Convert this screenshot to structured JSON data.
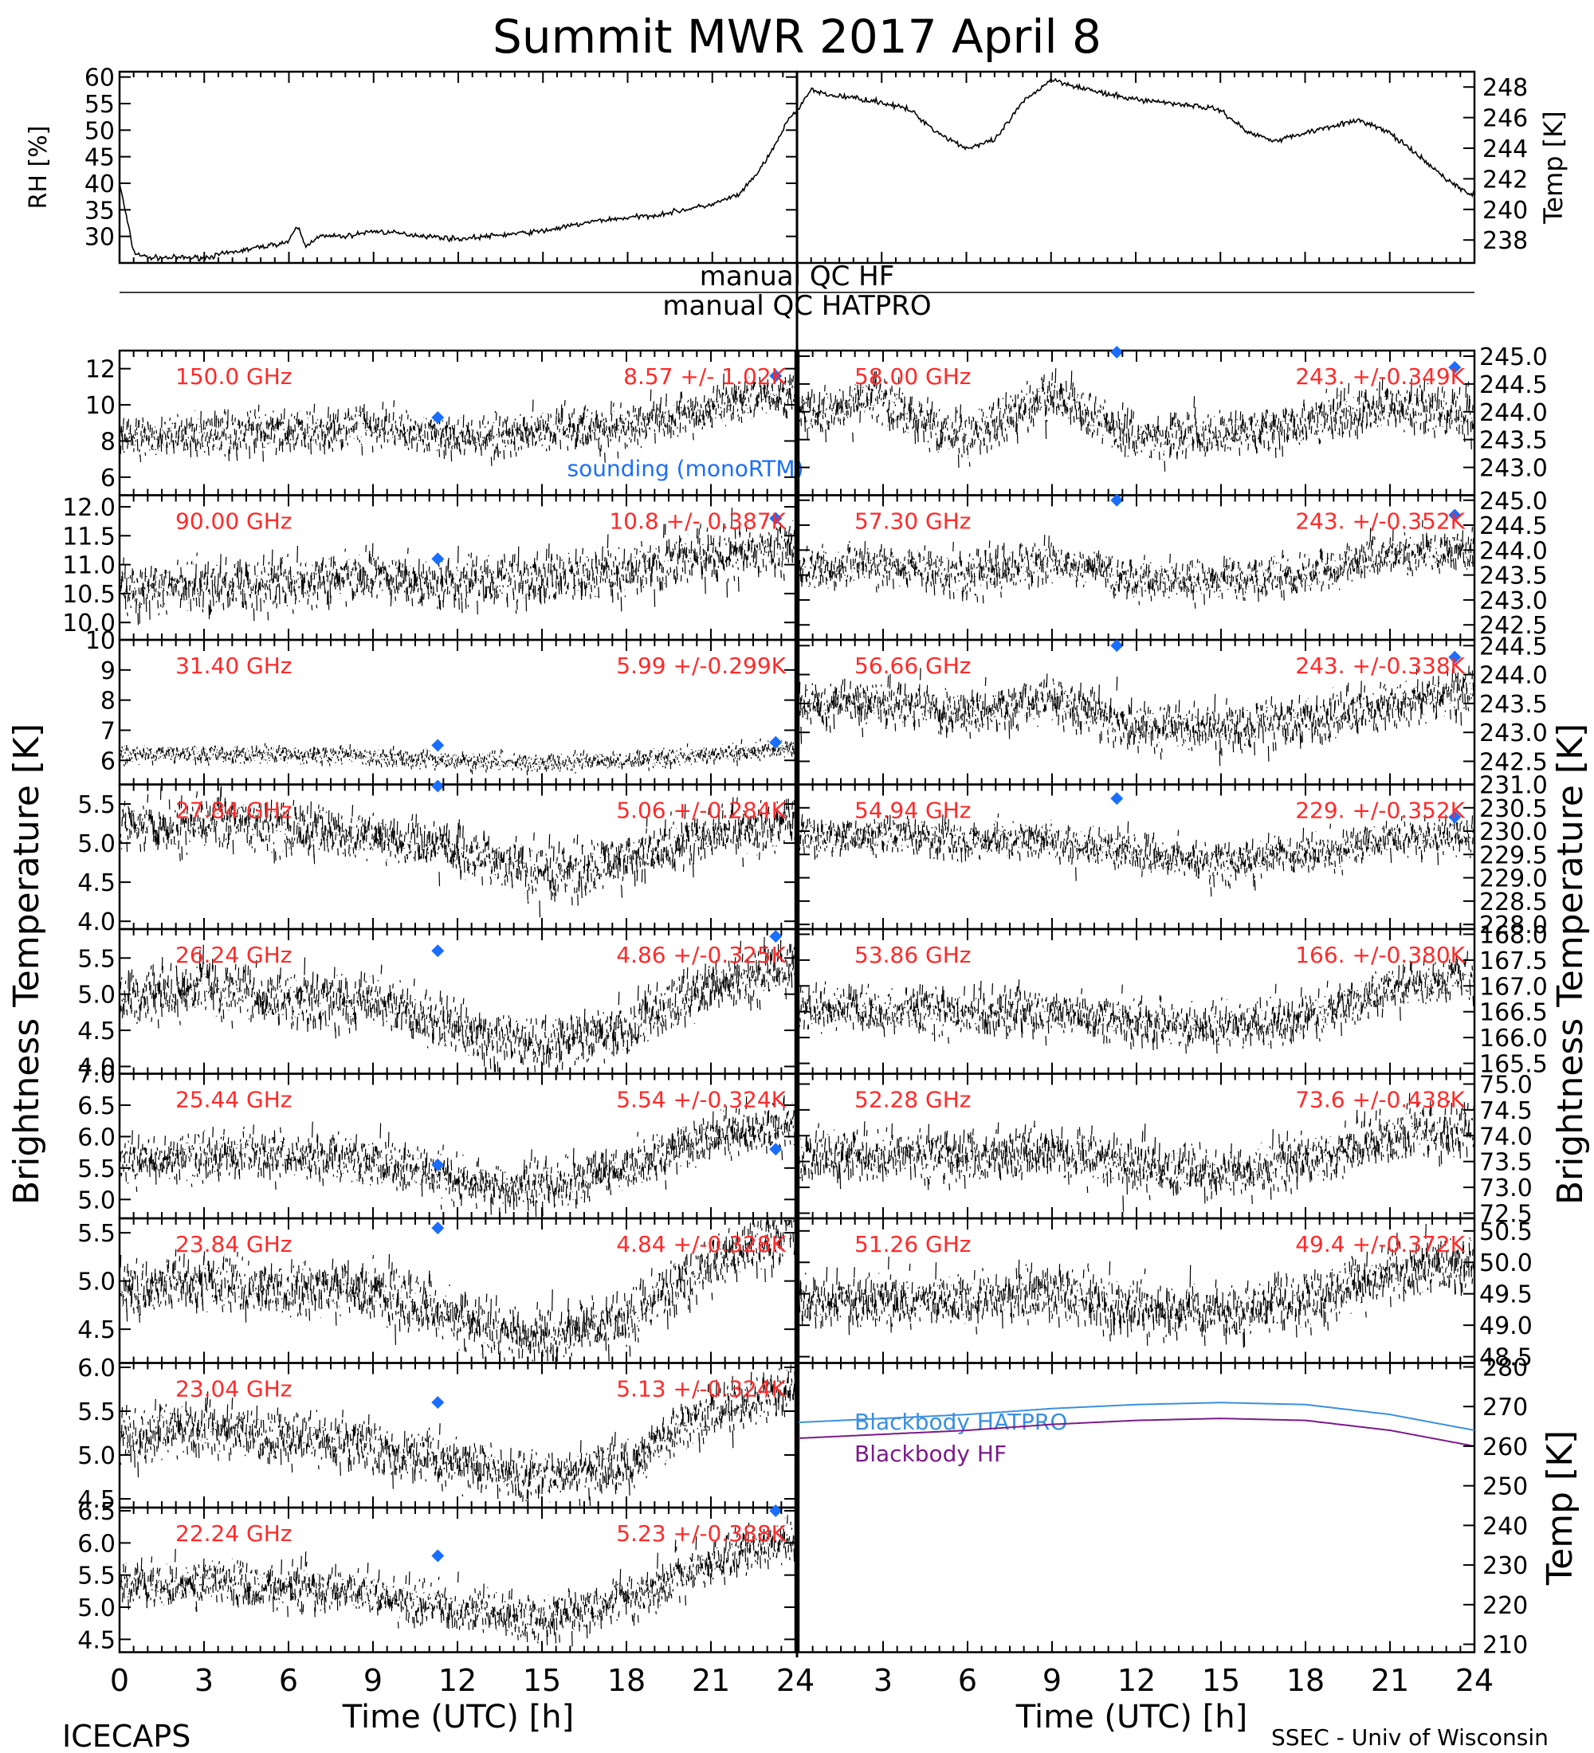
{
  "title": "Summit MWR 2017 April  8",
  "footer": {
    "left": "ICECAPS",
    "right": "SSEC - Univ of Wisconsin"
  },
  "qc_labels": {
    "hf": "manual  QC HF",
    "hatpro": "manual  QC HATPRO"
  },
  "shared_axis_labels": {
    "left": "Brightness Temperature [K]",
    "right": "Brightness Temperature [K]",
    "x": "Time (UTC) [h]",
    "x_ticks": [
      "0",
      "3",
      "6",
      "9",
      "12",
      "15",
      "18",
      "21",
      "24"
    ]
  },
  "colors": {
    "data": "#000000",
    "channel_label": "#ff2a2a",
    "sounding": "#1a6eff",
    "blackbody_hatpro": "#3a8fe0",
    "blackbody_hf": "#7a1a8a"
  },
  "chart_data": [
    {
      "id": "rh",
      "type": "line",
      "ylabel": "RH [%]",
      "ylim": [
        25,
        61
      ],
      "yticks": [
        30,
        35,
        40,
        45,
        50,
        55,
        60
      ],
      "xlim": [
        0,
        24
      ],
      "x": [
        0,
        0.5,
        1,
        2,
        3,
        4,
        5,
        6,
        6.3,
        6.6,
        7,
        8,
        9,
        10,
        11,
        12,
        13,
        14,
        15,
        16,
        17,
        18,
        19,
        20,
        21,
        22,
        22.6,
        23,
        23.5,
        23.8
      ],
      "values": [
        40,
        27,
        26,
        26,
        26,
        27,
        28,
        29,
        32,
        28,
        30,
        30,
        31,
        30.5,
        30,
        29.5,
        30,
        30.5,
        31,
        32,
        33,
        33.5,
        34,
        35,
        36,
        38,
        42,
        45,
        50,
        53
      ]
    },
    {
      "id": "temp",
      "type": "line",
      "ylabel": "Temp [K]",
      "ylim": [
        236.5,
        249
      ],
      "yticks": [
        238,
        240,
        242,
        244,
        246,
        248
      ],
      "xlim": [
        0,
        24
      ],
      "x": [
        0,
        0.5,
        1,
        2,
        3,
        4,
        5,
        6,
        7,
        8,
        9,
        10,
        11,
        12,
        13,
        14,
        15,
        16,
        17,
        18,
        19,
        20,
        21,
        22,
        23,
        23.8
      ],
      "values": [
        246.5,
        247.8,
        247.5,
        247.3,
        247,
        246.5,
        245,
        244,
        244.5,
        247,
        248.5,
        248,
        247.5,
        247.2,
        247,
        246.8,
        246.5,
        245,
        244.5,
        245,
        245.5,
        245.8,
        245,
        243.5,
        242,
        241
      ]
    },
    {
      "id": "ch150",
      "type": "scatter",
      "panel": "left-1",
      "label": "150.0 GHz",
      "stats": "8.57 +/- 1.02K",
      "ylim": [
        5,
        13
      ],
      "yticks": [
        "6",
        "8",
        "10",
        "12"
      ],
      "noise": 1.0,
      "x": [
        0,
        3,
        6,
        9,
        12,
        15,
        18,
        21,
        24
      ],
      "values": [
        8.2,
        8.3,
        8.6,
        8.8,
        8.2,
        8.5,
        8.8,
        9.8,
        10.8
      ],
      "sounding": [
        {
          "x": 11.3,
          "y": 9.3
        },
        {
          "x": 23.3,
          "y": 11.6
        }
      ],
      "sounding_label": "sounding (monoRTM)"
    },
    {
      "id": "ch58",
      "type": "scatter",
      "panel": "right-1",
      "label": "58.00 GHz",
      "stats": "243. +/-0.349K",
      "ylim": [
        242.5,
        245.1
      ],
      "yticks": [
        "243.0",
        "243.5",
        "244.0",
        "244.5",
        "245.0"
      ],
      "noise": 0.35,
      "x": [
        0,
        3,
        6,
        9,
        12,
        15,
        18,
        21,
        24
      ],
      "values": [
        244.0,
        244.2,
        243.5,
        244.3,
        243.5,
        243.6,
        243.8,
        244.1,
        244.0
      ],
      "sounding": [
        {
          "x": 11.3,
          "y": 245.1
        },
        {
          "x": 23.3,
          "y": 244.8
        }
      ]
    },
    {
      "id": "ch90",
      "type": "scatter",
      "panel": "left-2",
      "label": "90.00 GHz",
      "stats": "10.8 +/- 0.387K",
      "ylim": [
        9.7,
        12.2
      ],
      "yticks": [
        "10.0",
        "10.5",
        "11.0",
        "11.5",
        "12.0"
      ],
      "noise": 0.38,
      "x": [
        0,
        3,
        6,
        9,
        12,
        15,
        18,
        21,
        24
      ],
      "values": [
        10.6,
        10.6,
        10.7,
        10.8,
        10.7,
        10.8,
        10.9,
        11.2,
        11.3
      ],
      "sounding": [
        {
          "x": 11.3,
          "y": 11.1
        },
        {
          "x": 23.3,
          "y": 11.8
        }
      ]
    },
    {
      "id": "ch5730",
      "type": "scatter",
      "panel": "right-2",
      "label": "57.30 GHz",
      "stats": "243. +/-0.352K",
      "ylim": [
        242.2,
        245.1
      ],
      "yticks": [
        "242.5",
        "243.0",
        "243.5",
        "244.0",
        "244.5",
        "245.0"
      ],
      "noise": 0.35,
      "x": [
        0,
        3,
        6,
        9,
        12,
        15,
        18,
        21,
        24
      ],
      "values": [
        243.6,
        243.7,
        243.5,
        243.8,
        243.4,
        243.4,
        243.5,
        243.9,
        244.0
      ],
      "sounding": [
        {
          "x": 11.3,
          "y": 245.0
        },
        {
          "x": 23.3,
          "y": 244.7
        }
      ]
    },
    {
      "id": "ch3140",
      "type": "scatter",
      "panel": "left-3",
      "label": "31.40 GHz",
      "stats": "5.99 +/-0.299K",
      "ylim": [
        5.2,
        10
      ],
      "yticks": [
        "6",
        "7",
        "8",
        "9",
        "10"
      ],
      "noise": 0.25,
      "x": [
        0,
        3,
        6,
        9,
        12,
        15,
        18,
        21,
        24
      ],
      "values": [
        6.2,
        6.2,
        6.2,
        6.1,
        6.0,
        5.9,
        6.0,
        6.2,
        6.4
      ],
      "sounding": [
        {
          "x": 11.3,
          "y": 6.5
        },
        {
          "x": 23.3,
          "y": 6.6
        }
      ]
    },
    {
      "id": "ch5666",
      "type": "scatter",
      "panel": "right-3",
      "label": "56.66 GHz",
      "stats": "243. +/-0.338K",
      "ylim": [
        242.1,
        244.6
      ],
      "yticks": [
        "242.5",
        "243.0",
        "243.5",
        "244.0",
        "244.5"
      ],
      "noise": 0.34,
      "x": [
        0,
        3,
        6,
        9,
        12,
        15,
        18,
        21,
        24
      ],
      "values": [
        243.5,
        243.5,
        243.3,
        243.6,
        243.1,
        243.1,
        243.2,
        243.5,
        243.7
      ],
      "sounding": [
        {
          "x": 11.3,
          "y": 244.5
        },
        {
          "x": 23.3,
          "y": 244.3
        }
      ]
    },
    {
      "id": "ch2784",
      "type": "scatter",
      "panel": "left-4",
      "label": "27.84 GHz",
      "stats": "5.06 +/-0.284K",
      "ylim": [
        3.9,
        5.75
      ],
      "yticks": [
        "4.0",
        "4.5",
        "5.0",
        "5.5"
      ],
      "noise": 0.28,
      "x": [
        0,
        3,
        6,
        9,
        12,
        15,
        18,
        21,
        24
      ],
      "values": [
        5.2,
        5.3,
        5.2,
        5.1,
        4.9,
        4.6,
        4.8,
        5.1,
        5.3
      ],
      "sounding": [
        {
          "x": 11.3,
          "y": 5.75
        }
      ]
    },
    {
      "id": "ch5494",
      "type": "scatter",
      "panel": "right-4",
      "label": "54.94 GHz",
      "stats": "229. +/-0.352K",
      "ylim": [
        227.9,
        231
      ],
      "yticks": [
        "228.0",
        "228.5",
        "229.0",
        "229.5",
        "230.0",
        "230.5",
        "231.0"
      ],
      "noise": 0.35,
      "x": [
        0,
        3,
        6,
        9,
        12,
        15,
        18,
        21,
        24
      ],
      "values": [
        229.9,
        229.9,
        229.8,
        229.8,
        229.5,
        229.3,
        229.5,
        229.8,
        229.9
      ],
      "sounding": [
        {
          "x": 11.3,
          "y": 230.7
        },
        {
          "x": 23.3,
          "y": 230.3
        }
      ]
    },
    {
      "id": "ch2624",
      "type": "scatter",
      "panel": "left-5",
      "label": "26.24 GHz",
      "stats": "4.86 +/-0.325K",
      "ylim": [
        3.9,
        5.9
      ],
      "yticks": [
        "4.0",
        "4.5",
        "5.0",
        "5.5"
      ],
      "noise": 0.32,
      "x": [
        0,
        3,
        6,
        9,
        12,
        15,
        18,
        21,
        24
      ],
      "values": [
        4.9,
        5.1,
        4.9,
        4.9,
        4.5,
        4.3,
        4.5,
        5.1,
        5.4
      ],
      "sounding": [
        {
          "x": 11.3,
          "y": 5.6
        },
        {
          "x": 23.3,
          "y": 5.8
        }
      ]
    },
    {
      "id": "ch5386",
      "type": "scatter",
      "panel": "right-5",
      "label": "53.86 GHz",
      "stats": "166. +/-0.380K",
      "ylim": [
        165.3,
        168.1
      ],
      "yticks": [
        "165.5",
        "166.0",
        "166.5",
        "167.0",
        "167.5",
        "168.0"
      ],
      "noise": 0.38,
      "x": [
        0,
        3,
        6,
        9,
        12,
        15,
        18,
        21,
        24
      ],
      "values": [
        166.6,
        166.5,
        166.5,
        166.5,
        166.3,
        166.2,
        166.4,
        166.9,
        167.2
      ],
      "sounding": []
    },
    {
      "id": "ch2544",
      "type": "scatter",
      "panel": "left-6",
      "label": "25.44 GHz",
      "stats": "5.54 +/-0.324K",
      "ylim": [
        4.7,
        7.0
      ],
      "yticks": [
        "5.0",
        "5.5",
        "6.0",
        "6.5",
        "7.0"
      ],
      "noise": 0.32,
      "x": [
        0,
        3,
        6,
        9,
        12,
        15,
        18,
        21,
        24
      ],
      "values": [
        5.6,
        5.7,
        5.7,
        5.6,
        5.3,
        5.2,
        5.5,
        6.0,
        6.2
      ],
      "sounding": [
        {
          "x": 11.3,
          "y": 5.55
        },
        {
          "x": 23.3,
          "y": 5.8
        }
      ]
    },
    {
      "id": "ch5228",
      "type": "scatter",
      "panel": "right-6",
      "label": "52.28 GHz",
      "stats": "73.6 +/-0.438K",
      "ylim": [
        72.4,
        75.2
      ],
      "yticks": [
        "72.5",
        "73.0",
        "73.5",
        "74.0",
        "74.5",
        "75.0"
      ],
      "noise": 0.43,
      "x": [
        0,
        3,
        6,
        9,
        12,
        15,
        18,
        21,
        24
      ],
      "values": [
        73.6,
        73.6,
        73.6,
        73.7,
        73.4,
        73.3,
        73.5,
        74.0,
        74.2
      ],
      "sounding": []
    },
    {
      "id": "ch2384",
      "type": "scatter",
      "panel": "left-7",
      "label": "23.84 GHz",
      "stats": "4.84 +/-0.328K",
      "ylim": [
        4.15,
        5.65
      ],
      "yticks": [
        "4.5",
        "5.0",
        "5.5"
      ],
      "noise": 0.25,
      "x": [
        0,
        3,
        6,
        9,
        12,
        15,
        18,
        21,
        24
      ],
      "values": [
        4.9,
        5.0,
        4.9,
        4.9,
        4.6,
        4.4,
        4.6,
        5.2,
        5.5
      ],
      "sounding": [
        {
          "x": 11.3,
          "y": 5.55
        }
      ]
    },
    {
      "id": "ch5126",
      "type": "scatter",
      "panel": "right-7",
      "label": "51.26 GHz",
      "stats": "49.4 +/-0.372K",
      "ylim": [
        48.4,
        50.7
      ],
      "yticks": [
        "48.5",
        "49.0",
        "49.5",
        "50.0",
        "50.5"
      ],
      "noise": 0.37,
      "x": [
        0,
        3,
        6,
        9,
        12,
        15,
        18,
        21,
        24
      ],
      "values": [
        49.4,
        49.4,
        49.4,
        49.5,
        49.3,
        49.2,
        49.4,
        49.8,
        50.0
      ],
      "sounding": []
    },
    {
      "id": "ch2304",
      "type": "scatter",
      "panel": "left-8",
      "label": "23.04 GHz",
      "stats": "5.13 +/-0.324K",
      "ylim": [
        4.4,
        6.05
      ],
      "yticks": [
        "4.5",
        "5.0",
        "5.5",
        "6.0"
      ],
      "noise": 0.25,
      "x": [
        0,
        3,
        6,
        9,
        12,
        15,
        18,
        21,
        24
      ],
      "values": [
        5.2,
        5.3,
        5.2,
        5.1,
        4.9,
        4.7,
        4.9,
        5.5,
        5.8
      ],
      "sounding": [
        {
          "x": 11.3,
          "y": 5.6
        }
      ]
    },
    {
      "id": "ch2224",
      "type": "scatter",
      "panel": "left-9",
      "label": "22.24 GHz",
      "stats": "5.23 +/-0.388K",
      "ylim": [
        4.3,
        6.55
      ],
      "yticks": [
        "4.5",
        "5.0",
        "5.5",
        "6.0",
        "6.5"
      ],
      "noise": 0.3,
      "x": [
        0,
        3,
        6,
        9,
        12,
        15,
        18,
        21,
        24
      ],
      "values": [
        5.3,
        5.4,
        5.3,
        5.2,
        5.0,
        4.8,
        5.1,
        5.7,
        6.1
      ],
      "sounding": [
        {
          "x": 11.3,
          "y": 5.8
        },
        {
          "x": 23.3,
          "y": 6.5
        }
      ]
    },
    {
      "id": "blackbody",
      "type": "line",
      "panel": "right-8",
      "ylabel": "Temp [K]",
      "ylim": [
        208,
        281
      ],
      "yticks": [
        "210",
        "220",
        "230",
        "240",
        "250",
        "260",
        "270",
        "280"
      ],
      "x": [
        0,
        3,
        6,
        9,
        12,
        15,
        18,
        21,
        24
      ],
      "series": [
        {
          "name": "Blackbody HATPRO",
          "values": [
            266,
            267,
            268,
            269.5,
            270.5,
            271,
            270.5,
            268,
            264
          ]
        },
        {
          "name": "Blackbody HF",
          "values": [
            262,
            263,
            264,
            265.5,
            266.5,
            267,
            266.5,
            264,
            260
          ]
        }
      ]
    }
  ]
}
